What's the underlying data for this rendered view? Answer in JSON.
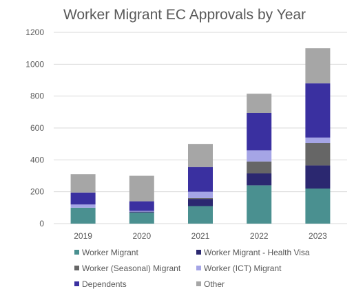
{
  "chart_data": {
    "type": "bar",
    "stacked": true,
    "title": "Worker Migrant EC Approvals by Year",
    "xlabel": "",
    "ylabel": "",
    "ylim": [
      0,
      1200
    ],
    "yticks": [
      0,
      200,
      400,
      600,
      800,
      1000,
      1200
    ],
    "grid": true,
    "legend_position": "bottom",
    "categories": [
      "2019",
      "2020",
      "2021",
      "2022",
      "2023"
    ],
    "series": [
      {
        "name": "Worker Migrant",
        "color": "#4a9090",
        "values": [
          100,
          70,
          110,
          240,
          220
        ]
      },
      {
        "name": "Worker Migrant - Health Visa",
        "color": "#2b2870",
        "values": [
          0,
          5,
          45,
          75,
          145
        ]
      },
      {
        "name": "Worker (Seasonal) Migrant",
        "color": "#666666",
        "values": [
          0,
          0,
          5,
          75,
          140
        ]
      },
      {
        "name": "Worker (ICT) Migrant",
        "color": "#a5a5e6",
        "values": [
          20,
          5,
          40,
          70,
          35
        ]
      },
      {
        "name": "Dependents",
        "color": "#3a30a0",
        "values": [
          75,
          60,
          155,
          235,
          340
        ]
      },
      {
        "name": "Other",
        "color": "#a6a6a6",
        "values": [
          115,
          160,
          145,
          120,
          220
        ]
      }
    ]
  }
}
